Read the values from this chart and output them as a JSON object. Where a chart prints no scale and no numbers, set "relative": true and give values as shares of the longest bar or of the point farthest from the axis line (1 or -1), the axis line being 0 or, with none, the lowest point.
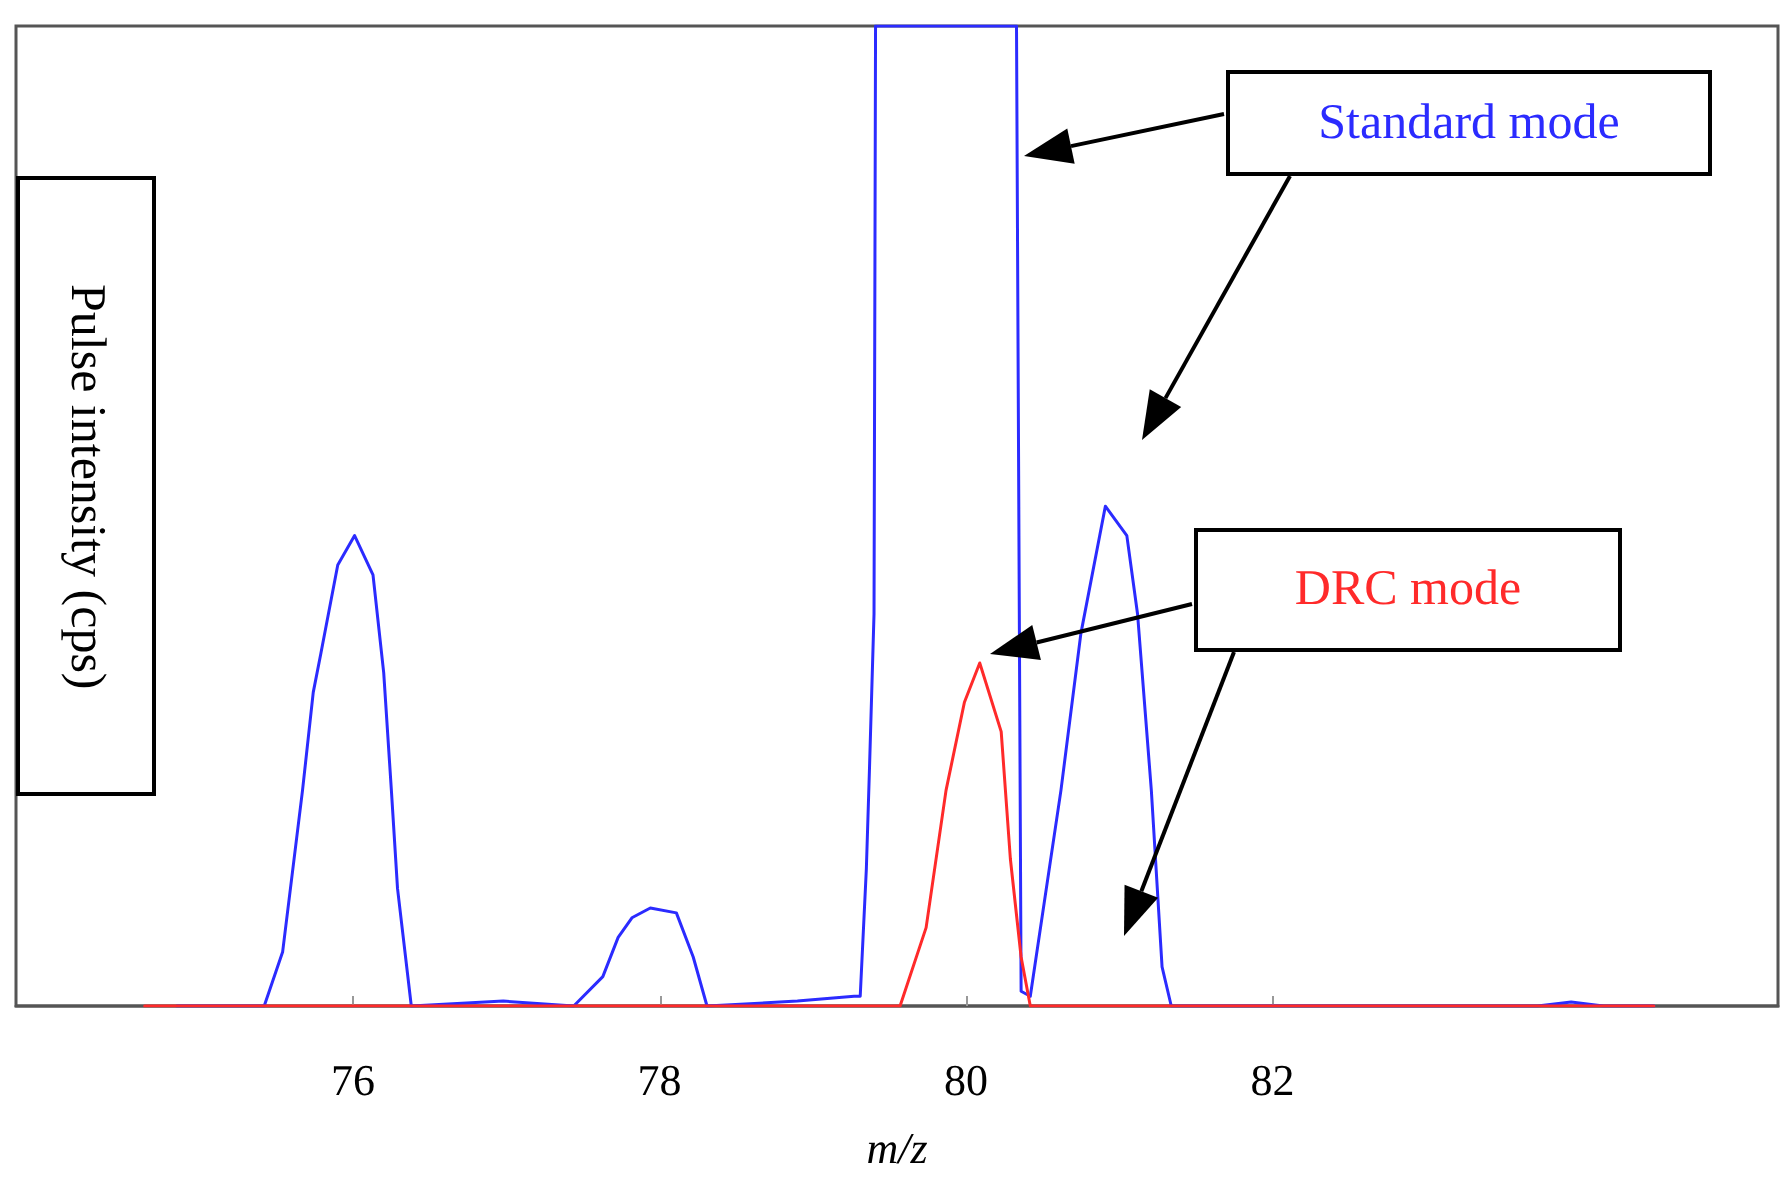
{
  "chart_data": {
    "type": "line",
    "xlabel": "m/z",
    "ylabel": "Pulse intensity (cps)",
    "relative": true,
    "grid": false,
    "marker": "none",
    "xlim": [
      73.8,
      85.3
    ],
    "xticks": [
      76,
      78,
      80,
      82
    ],
    "annotations": [
      "Standard mode",
      "DRC mode"
    ],
    "series": [
      {
        "color": "#2b2bff",
        "x": [
          74.85,
          75.42,
          75.54,
          75.67,
          75.74,
          75.79,
          75.9,
          76.01,
          76.13,
          76.2,
          76.25,
          76.29,
          76.38,
          76.98,
          77.44,
          77.63,
          77.73,
          77.82,
          77.94,
          78.11,
          78.22,
          78.31,
          78.9,
          79.27,
          79.31,
          79.35,
          79.37,
          79.4,
          79.41,
          80.33,
          80.36,
          80.42,
          80.62,
          80.75,
          80.91,
          81.05,
          81.12,
          81.21,
          81.28,
          81.34,
          83.73,
          83.95,
          84.16,
          84.49
        ],
        "values": [
          0,
          0,
          0.055,
          0.22,
          0.32,
          0.36,
          0.45,
          0.48,
          0.44,
          0.34,
          0.22,
          0.12,
          0,
          0.005,
          0,
          0.03,
          0.07,
          0.09,
          0.1,
          0.095,
          0.05,
          0,
          0.005,
          0.01,
          0.01,
          0.14,
          0.24,
          0.4,
          1,
          1,
          0.015,
          0.01,
          0.22,
          0.38,
          0.51,
          0.48,
          0.4,
          0.22,
          0.04,
          0,
          0,
          0.004,
          0,
          0
        ]
      },
      {
        "color": "#ff2a2a",
        "x": [
          74.64,
          79.57,
          79.74,
          79.87,
          79.99,
          80.09,
          80.23,
          80.29,
          80.36,
          80.42,
          84.49
        ],
        "values": [
          0,
          0,
          0.08,
          0.22,
          0.31,
          0.35,
          0.28,
          0.15,
          0.05,
          0,
          0
        ]
      }
    ]
  }
}
